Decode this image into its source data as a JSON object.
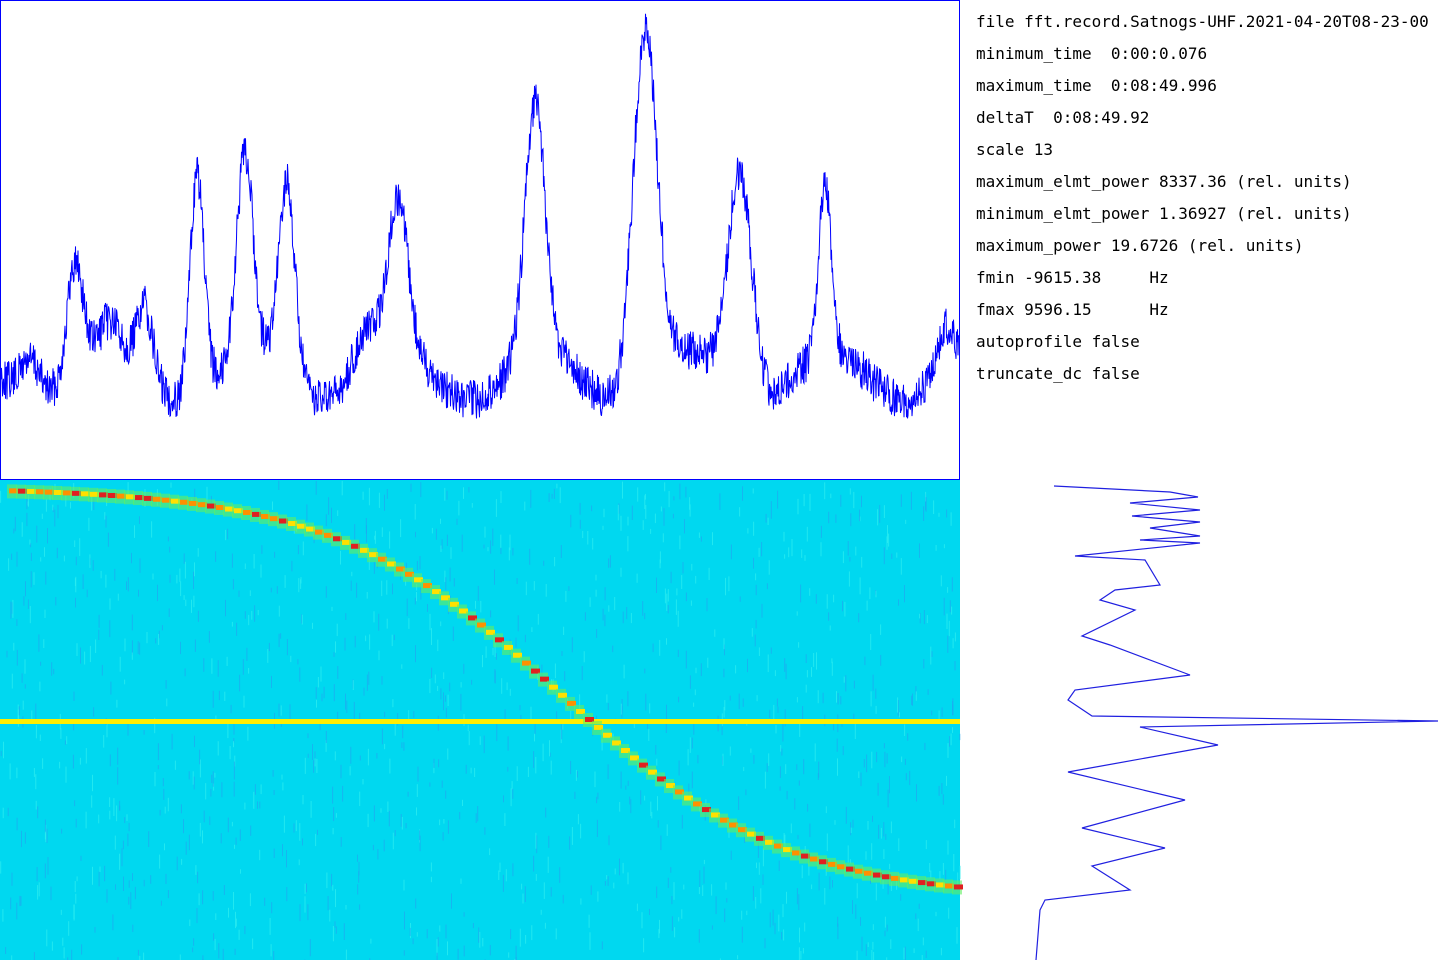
{
  "info": {
    "lines": [
      "file fft.record.Satnogs-UHF.2021-04-20T08-23-00",
      "minimum_time  0:00:0.076",
      "maximum_time  0:08:49.996",
      "deltaT  0:08:49.92",
      "scale 13",
      "maximum_elmt_power 8337.36 (rel. units)",
      "minimum_elmt_power 1.36927 (rel. units)",
      "maximum_power 19.6726 (rel. units)",
      "fmin -9615.38     Hz",
      "fmax 9596.15      Hz",
      "autoprofile false",
      "truncate_dc false"
    ]
  }
}
